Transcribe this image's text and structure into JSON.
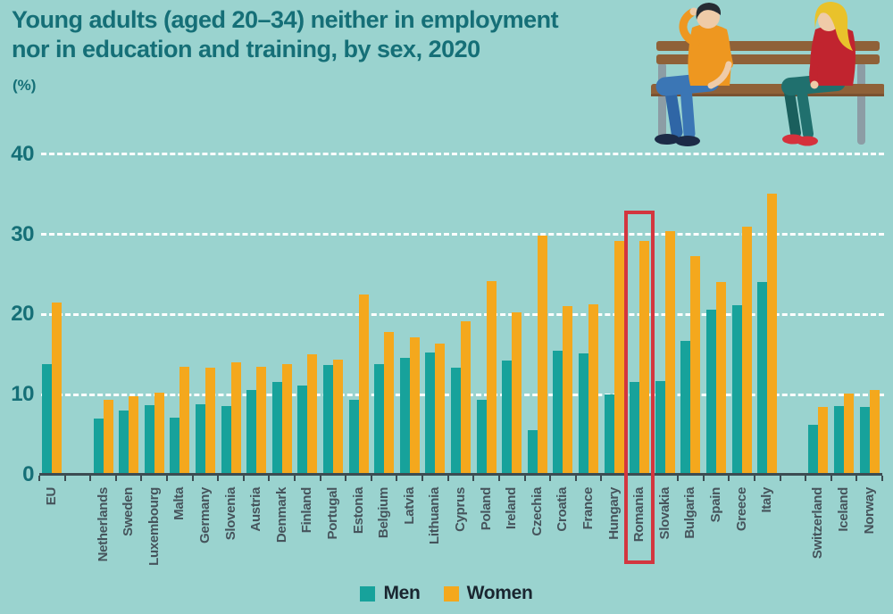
{
  "title": {
    "line1": "Young adults (aged 20–34) neither in employment",
    "line2": "nor in education and training, by sex, 2020",
    "unit": "(%)"
  },
  "legend": {
    "men_label": "Men",
    "women_label": "Women"
  },
  "highlight": {
    "country": "Romania"
  },
  "illustration": {
    "name": "man-and-woman-sitting-on-bench"
  },
  "colors": {
    "background": "#9AD3CF",
    "men": "#17A29B",
    "women": "#F4A81D",
    "title_text": "#156F77",
    "axis_label_text": "#156F77",
    "country_label_text": "#46545C",
    "legend_text": "#1A2630",
    "highlight_box": "#D3363F",
    "gridline": "#FFFFFF",
    "axis_line": "#3C4C52"
  },
  "chart_data": {
    "type": "bar",
    "title": "Young adults (aged 20–34) neither in employment nor in education and training, by sex, 2020",
    "ylabel": "(%)",
    "ylim": [
      0,
      40
    ],
    "yticks": [
      0,
      10,
      20,
      30,
      40
    ],
    "grid": "horizontal-white-dashed",
    "legend_position": "bottom-center",
    "categories": [
      "EU",
      "Netherlands",
      "Sweden",
      "Luxembourg",
      "Malta",
      "Germany",
      "Slovenia",
      "Austria",
      "Denmark",
      "Finland",
      "Portugal",
      "Estonia",
      "Belgium",
      "Latvia",
      "Lithuania",
      "Cyprus",
      "Poland",
      "Ireland",
      "Czechia",
      "Croatia",
      "France",
      "Hungary",
      "Romania",
      "Slovakia",
      "Bulgaria",
      "Spain",
      "Greece",
      "Italy",
      "Switzerland",
      "Iceland",
      "Norway"
    ],
    "gaps_after": [
      "EU",
      "Italy"
    ],
    "highlighted_category": "Romania",
    "series": [
      {
        "name": "Men",
        "color": "#17A29B",
        "values": [
          13.8,
          7.0,
          8.0,
          8.7,
          7.1,
          8.8,
          8.6,
          10.6,
          11.6,
          11.1,
          13.7,
          9.3,
          13.8,
          14.6,
          15.3,
          13.4,
          9.4,
          14.2,
          5.6,
          15.5,
          15.2,
          10.0,
          11.6,
          11.7,
          16.7,
          20.6,
          21.2,
          24.1,
          6.2,
          8.6,
          8.5
        ]
      },
      {
        "name": "Women",
        "color": "#F4A81D",
        "values": [
          21.5,
          9.4,
          9.8,
          10.3,
          13.5,
          13.4,
          14.0,
          13.5,
          13.8,
          15.0,
          14.4,
          22.5,
          17.8,
          17.2,
          16.4,
          19.1,
          24.2,
          20.3,
          29.8,
          21.0,
          21.3,
          29.2,
          29.2,
          30.4,
          27.3,
          24.0,
          31.0,
          35.1,
          8.5,
          10.1,
          10.6
        ]
      }
    ]
  }
}
